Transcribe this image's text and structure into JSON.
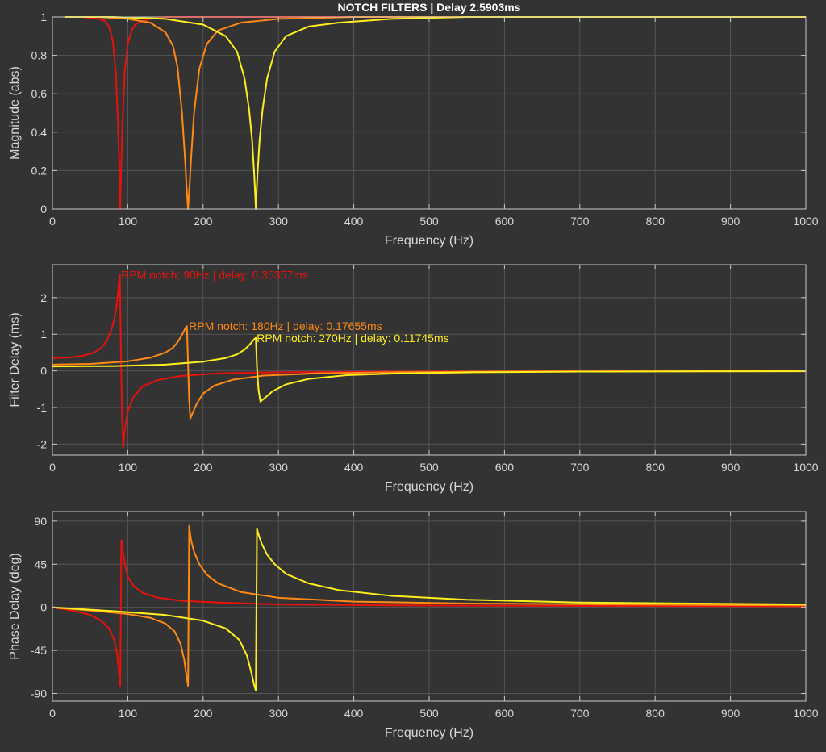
{
  "title": "NOTCH FILTERS | Delay 2.5903ms",
  "colors": {
    "background": "#333333",
    "axes_background": "#333333",
    "axes_box": "#c8c8c8",
    "grid": "#555555",
    "text": "#d8d8d8",
    "title": "#ffffff",
    "series": [
      "#e8120c",
      "#ff8a14",
      "#ffee1e"
    ]
  },
  "chart_data": [
    {
      "type": "line",
      "xlabel": "Frequency (Hz)",
      "ylabel": "Magnitude (abs)",
      "xlim": [
        0,
        1000
      ],
      "ylim": [
        0,
        1
      ],
      "grid": true,
      "xticks": [
        0,
        100,
        200,
        300,
        400,
        500,
        600,
        700,
        800,
        900,
        1000
      ],
      "yticks": [
        0,
        0.2,
        0.4,
        0.6,
        0.8,
        1
      ],
      "ytick_labels": [
        "0",
        "0.2",
        "0.4",
        "0.6",
        "0.8",
        "1"
      ],
      "series": [
        {
          "notch_hz": 90,
          "width_hz": 5,
          "x": [
            16,
            40,
            60,
            70,
            75,
            80,
            84,
            87,
            89,
            90,
            91,
            93,
            96,
            100,
            105,
            110,
            120,
            130,
            150,
            200,
            300,
            1000
          ],
          "y": [
            1,
            1,
            0.99,
            0.98,
            0.95,
            0.88,
            0.72,
            0.45,
            0.18,
            0,
            0.18,
            0.45,
            0.72,
            0.86,
            0.93,
            0.96,
            0.98,
            0.99,
            1,
            1,
            1,
            1
          ]
        },
        {
          "notch_hz": 180,
          "width_hz": 10,
          "x": [
            16,
            60,
            100,
            130,
            150,
            160,
            166,
            172,
            176,
            178,
            180,
            182,
            184,
            188,
            195,
            205,
            220,
            250,
            300,
            400,
            500,
            1000
          ],
          "y": [
            1,
            1,
            0.99,
            0.97,
            0.92,
            0.85,
            0.74,
            0.5,
            0.26,
            0.12,
            0,
            0.12,
            0.26,
            0.5,
            0.73,
            0.86,
            0.93,
            0.97,
            0.99,
            1,
            1,
            1
          ]
        },
        {
          "notch_hz": 270,
          "width_hz": 16,
          "x": [
            16,
            80,
            150,
            200,
            230,
            245,
            255,
            261,
            265,
            268,
            270,
            272,
            275,
            279,
            285,
            295,
            310,
            340,
            380,
            450,
            550,
            700,
            1000
          ],
          "y": [
            1,
            1,
            0.99,
            0.96,
            0.9,
            0.82,
            0.68,
            0.52,
            0.36,
            0.17,
            0,
            0.17,
            0.36,
            0.52,
            0.68,
            0.82,
            0.9,
            0.95,
            0.97,
            0.99,
            1,
            1,
            1
          ]
        }
      ]
    },
    {
      "type": "line",
      "xlabel": "Frequency (Hz)",
      "ylabel": "Filter Delay (ms)",
      "xlim": [
        0,
        1000
      ],
      "ylim": [
        -2.3,
        2.9
      ],
      "grid": true,
      "xticks": [
        0,
        100,
        200,
        300,
        400,
        500,
        600,
        700,
        800,
        900,
        1000
      ],
      "yticks": [
        -2,
        -1,
        0,
        1,
        2
      ],
      "ytick_labels": [
        "-2",
        "-1",
        "0",
        "1",
        "2"
      ],
      "series": [
        {
          "x": [
            0,
            20,
            40,
            55,
            65,
            72,
            78,
            82,
            85,
            87,
            88.5,
            89.5,
            91,
            92.5,
            94,
            96,
            100,
            108,
            120,
            140,
            170,
            220,
            300,
            450,
            700,
            1000
          ],
          "y": [
            0.35,
            0.36,
            0.41,
            0.5,
            0.63,
            0.82,
            1.1,
            1.4,
            1.75,
            2.1,
            2.45,
            2.62,
            0.4,
            -1.3,
            -2.1,
            -1.6,
            -1.1,
            -0.7,
            -0.42,
            -0.25,
            -0.14,
            -0.07,
            -0.04,
            -0.02,
            -0.01,
            -0.005
          ]
        },
        {
          "x": [
            0,
            50,
            100,
            130,
            150,
            160,
            166,
            171,
            175,
            177,
            178.5,
            180,
            181.5,
            183,
            186,
            192,
            200,
            215,
            240,
            280,
            350,
            450,
            600,
            800,
            1000
          ],
          "y": [
            0.17,
            0.19,
            0.26,
            0.36,
            0.5,
            0.63,
            0.78,
            0.95,
            1.1,
            1.19,
            1.22,
            0.2,
            -0.8,
            -1.3,
            -1.15,
            -0.88,
            -0.62,
            -0.4,
            -0.24,
            -0.13,
            -0.07,
            -0.04,
            -0.02,
            -0.01,
            0
          ]
        },
        {
          "x": [
            0,
            80,
            150,
            200,
            230,
            245,
            255,
            262,
            266,
            268.5,
            270,
            271.5,
            273.5,
            276,
            282,
            292,
            310,
            340,
            390,
            460,
            560,
            700,
            1000
          ],
          "y": [
            0.12,
            0.13,
            0.17,
            0.25,
            0.35,
            0.45,
            0.58,
            0.72,
            0.82,
            0.88,
            0.9,
            0.1,
            -0.5,
            -0.84,
            -0.74,
            -0.56,
            -0.37,
            -0.22,
            -0.12,
            -0.07,
            -0.04,
            -0.02,
            -0.01
          ]
        }
      ],
      "annotations": [
        {
          "text": "RPM notch: 90Hz | delay: 0.35357ms",
          "x": 89,
          "y": 2.62,
          "series": 0
        },
        {
          "text": "RPM notch: 180Hz | delay: 0.17655ms",
          "x": 179,
          "y": 1.22,
          "series": 1
        },
        {
          "text": "RPM notch: 270Hz | delay: 0.11745ms",
          "x": 269,
          "y": 0.9,
          "series": 2
        }
      ]
    },
    {
      "type": "line",
      "xlabel": "Frequency (Hz)",
      "ylabel": "Phase Delay (deg)",
      "xlim": [
        0,
        1000
      ],
      "ylim": [
        -98,
        100
      ],
      "grid": true,
      "xticks": [
        0,
        100,
        200,
        300,
        400,
        500,
        600,
        700,
        800,
        900,
        1000
      ],
      "yticks": [
        -90,
        -45,
        0,
        45,
        90
      ],
      "ytick_labels": [
        "-90",
        "-45",
        "0",
        "45",
        "90"
      ],
      "series": [
        {
          "x": [
            0,
            30,
            50,
            65,
            75,
            82,
            86,
            88.5,
            90,
            91.5,
            94,
            97,
            100,
            108,
            120,
            140,
            170,
            220,
            300,
            450,
            700,
            1000
          ],
          "y": [
            0,
            -4,
            -8,
            -14,
            -22,
            -34,
            -50,
            -70,
            -82,
            70,
            56,
            42,
            32,
            22,
            15,
            10,
            7,
            5,
            3,
            2,
            1.5,
            1
          ]
        },
        {
          "x": [
            0,
            60,
            100,
            130,
            150,
            162,
            170,
            175,
            178,
            180,
            181.5,
            184,
            188,
            195,
            205,
            220,
            250,
            300,
            400,
            550,
            750,
            1000
          ],
          "y": [
            0,
            -4,
            -7,
            -11,
            -17,
            -25,
            -38,
            -55,
            -72,
            -82,
            85,
            70,
            58,
            45,
            34,
            25,
            16,
            10,
            6,
            4,
            3,
            2
          ]
        },
        {
          "x": [
            0,
            80,
            150,
            200,
            230,
            248,
            258,
            264,
            268,
            270,
            271.5,
            274,
            278,
            285,
            295,
            310,
            340,
            380,
            450,
            550,
            700,
            850,
            1000
          ],
          "y": [
            0,
            -4,
            -8,
            -14,
            -22,
            -34,
            -50,
            -68,
            -82,
            -87,
            82,
            75,
            66,
            55,
            45,
            35,
            25,
            18,
            12,
            8,
            5,
            4,
            3
          ]
        }
      ]
    }
  ]
}
